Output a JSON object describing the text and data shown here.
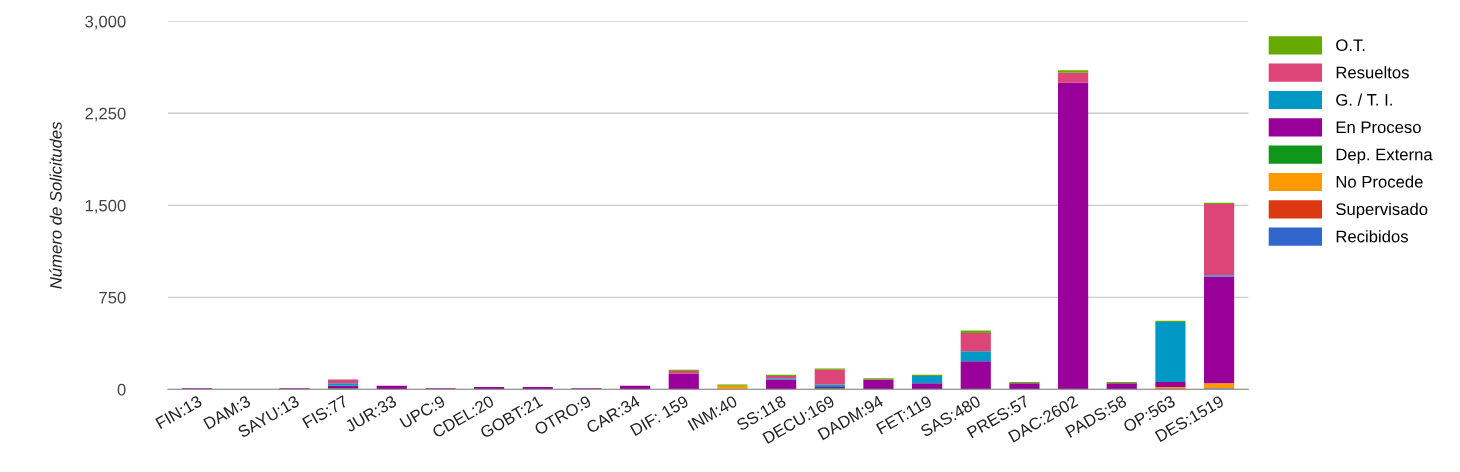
{
  "chart_data": {
    "type": "bar",
    "stacked": true,
    "ylabel": "Número de Solicitudes",
    "categories": [
      "FIN:13",
      "DAM:3",
      "SAYU:13",
      "FIS:77",
      "JUR:33",
      "UPC:9",
      "CDEL:20",
      "GOBT:21",
      "OTRO:9",
      "CAR:34",
      "DIF: 159",
      "INM:40",
      "SS:118",
      "DECU:169",
      "DADM:94",
      "FET:119",
      "SAS:480",
      "PRES:57",
      "DAC:2602",
      "PADS:58",
      "OP:563",
      "DES:1519"
    ],
    "series": [
      {
        "name": "Recibidos",
        "color": "#3366cc",
        "values": [
          0,
          0,
          0,
          0,
          0,
          0,
          0,
          0,
          0,
          0,
          0,
          0,
          0,
          0,
          0,
          0,
          0,
          0,
          0,
          0,
          0,
          10
        ]
      },
      {
        "name": "Supervisado",
        "color": "#dc3912",
        "values": [
          0,
          0,
          0,
          0,
          0,
          0,
          0,
          0,
          0,
          0,
          0,
          0,
          0,
          0,
          0,
          0,
          0,
          0,
          0,
          0,
          10,
          0
        ]
      },
      {
        "name": "No Procede",
        "color": "#ff9900",
        "values": [
          0,
          0,
          0,
          0,
          0,
          0,
          0,
          0,
          0,
          0,
          0,
          30,
          0,
          0,
          0,
          0,
          0,
          0,
          0,
          0,
          10,
          40
        ]
      },
      {
        "name": "Dep. Externa",
        "color": "#109618",
        "values": [
          0,
          0,
          0,
          10,
          0,
          0,
          0,
          0,
          0,
          0,
          0,
          0,
          0,
          10,
          0,
          0,
          0,
          0,
          0,
          0,
          0,
          0
        ]
      },
      {
        "name": "En Proceso",
        "color": "#990099",
        "values": [
          10,
          0,
          10,
          20,
          30,
          10,
          20,
          20,
          10,
          30,
          130,
          0,
          80,
          10,
          80,
          50,
          230,
          50,
          2500,
          50,
          40,
          870
        ]
      },
      {
        "name": "G. / T. I.",
        "color": "#0099c6",
        "values": [
          0,
          0,
          0,
          20,
          0,
          0,
          0,
          0,
          0,
          0,
          0,
          0,
          10,
          20,
          0,
          60,
          80,
          0,
          0,
          0,
          490,
          10
        ]
      },
      {
        "name": "Resueltos",
        "color": "#dd4477",
        "values": [
          0,
          0,
          0,
          30,
          0,
          0,
          0,
          0,
          0,
          0,
          20,
          0,
          20,
          120,
          0,
          0,
          150,
          0,
          80,
          0,
          0,
          580
        ]
      },
      {
        "name": "O.T.",
        "color": "#66aa00",
        "values": [
          0,
          0,
          0,
          0,
          0,
          0,
          0,
          0,
          0,
          0,
          10,
          10,
          10,
          10,
          10,
          10,
          20,
          10,
          20,
          10,
          10,
          10
        ]
      }
    ],
    "ylim": [
      0,
      3000
    ],
    "yticks": [
      {
        "value": 0,
        "label": "0"
      },
      {
        "value": 750,
        "label": "750"
      },
      {
        "value": 1500,
        "label": "1,500"
      },
      {
        "value": 2250,
        "label": "2,250"
      },
      {
        "value": 3000,
        "label": "3,000"
      }
    ],
    "grid": "y",
    "legend": "right"
  }
}
